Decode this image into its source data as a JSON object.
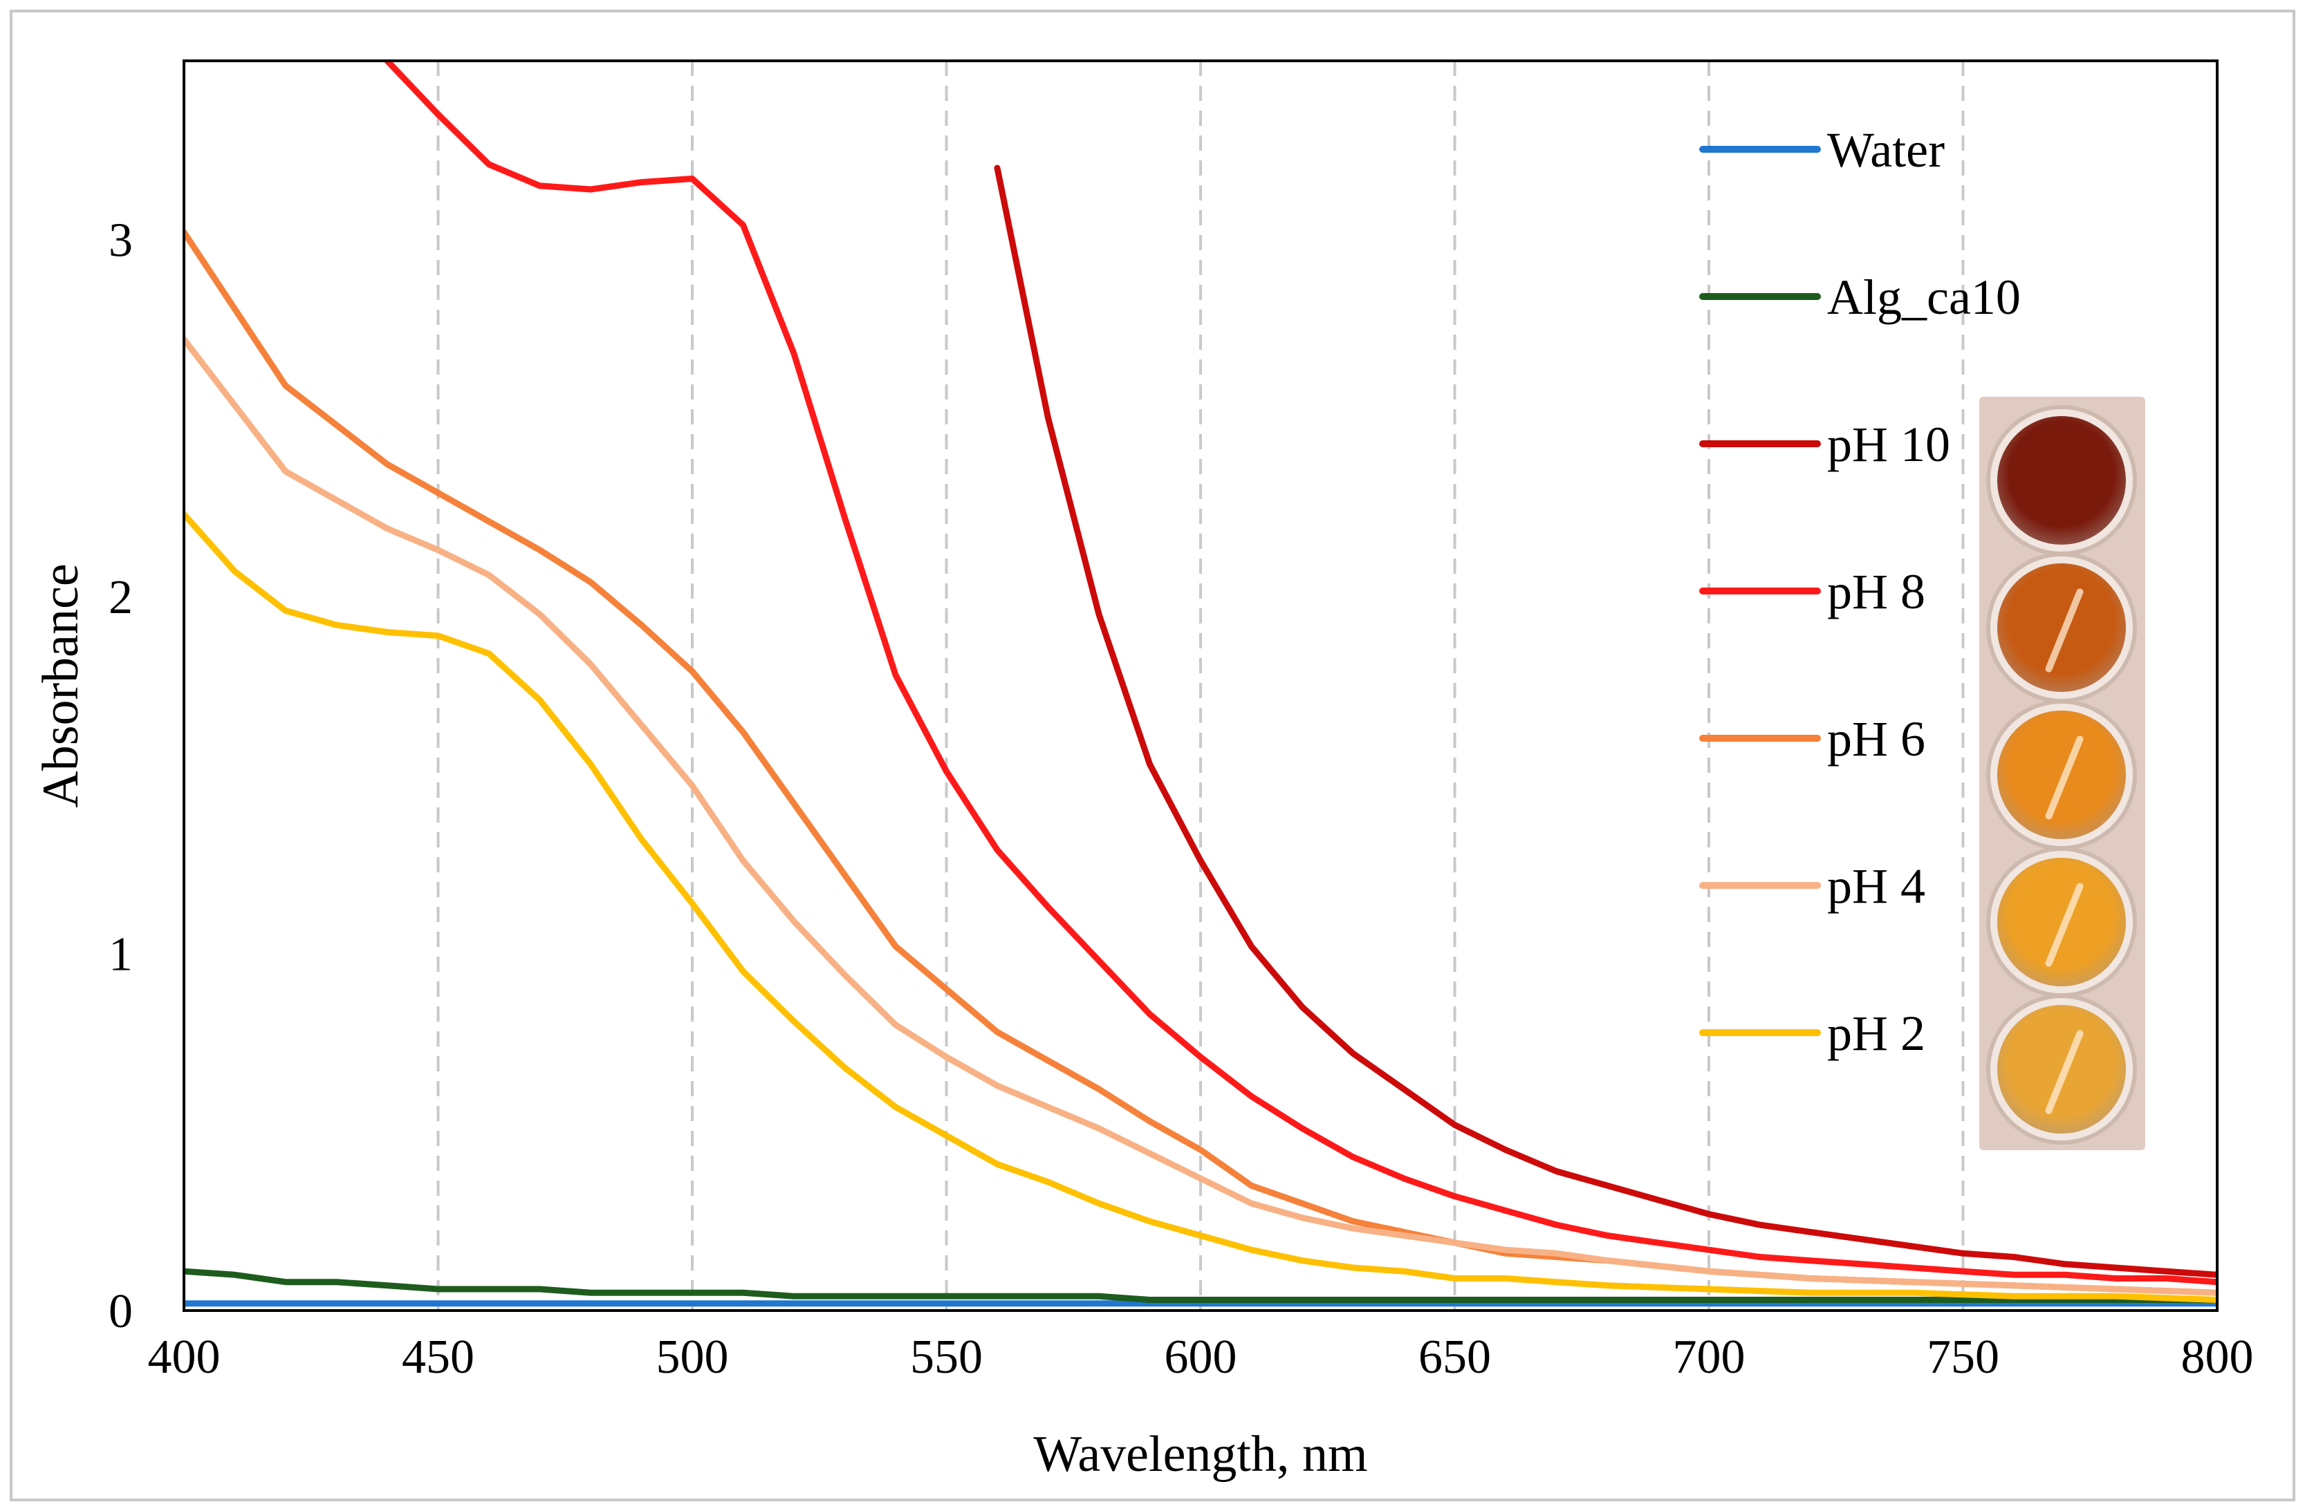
{
  "chart_data": {
    "type": "line",
    "title": "",
    "xlabel": "Wavelength, nm",
    "ylabel": "Absorbance",
    "xlim": [
      400,
      800
    ],
    "ylim": [
      0,
      3.5
    ],
    "xticks": [
      400,
      450,
      500,
      550,
      600,
      650,
      700,
      750,
      800
    ],
    "yticks": [
      0,
      1,
      2,
      3
    ],
    "grid": "vertical dashed",
    "legend_position": "top-right",
    "series": [
      {
        "name": "Water",
        "color": "#1f77d0",
        "x": [
          400,
          800
        ],
        "y": [
          0.02,
          0.02
        ]
      },
      {
        "name": "Alg_ca10",
        "color": "#1e5c1e",
        "x": [
          400,
          410,
          420,
          430,
          440,
          450,
          460,
          470,
          480,
          490,
          500,
          510,
          520,
          530,
          540,
          550,
          560,
          570,
          580,
          590,
          600,
          650,
          700,
          750,
          800
        ],
        "y": [
          0.11,
          0.1,
          0.08,
          0.08,
          0.07,
          0.06,
          0.06,
          0.06,
          0.05,
          0.05,
          0.05,
          0.05,
          0.04,
          0.04,
          0.04,
          0.04,
          0.04,
          0.04,
          0.04,
          0.03,
          0.03,
          0.03,
          0.03,
          0.03,
          0.03
        ]
      },
      {
        "name": "pH 10",
        "color": "#cc0a0a",
        "x": [
          560,
          570,
          580,
          590,
          600,
          610,
          620,
          630,
          640,
          650,
          660,
          670,
          680,
          690,
          700,
          710,
          720,
          730,
          740,
          750,
          760,
          770,
          780,
          790,
          800
        ],
        "y": [
          3.2,
          2.5,
          1.95,
          1.53,
          1.26,
          1.02,
          0.85,
          0.72,
          0.62,
          0.52,
          0.45,
          0.39,
          0.35,
          0.31,
          0.27,
          0.24,
          0.22,
          0.2,
          0.18,
          0.16,
          0.15,
          0.13,
          0.12,
          0.11,
          0.1
        ]
      },
      {
        "name": "pH 8",
        "color": "#ff1a1a",
        "x": [
          440,
          450,
          460,
          470,
          480,
          490,
          500,
          510,
          520,
          530,
          540,
          550,
          560,
          570,
          580,
          590,
          600,
          610,
          620,
          630,
          640,
          650,
          660,
          670,
          680,
          690,
          700,
          710,
          720,
          730,
          740,
          750,
          760,
          770,
          780,
          790,
          800
        ],
        "y": [
          3.5,
          3.35,
          3.21,
          3.15,
          3.14,
          3.16,
          3.17,
          3.04,
          2.68,
          2.22,
          1.78,
          1.51,
          1.29,
          1.13,
          0.98,
          0.83,
          0.71,
          0.6,
          0.51,
          0.43,
          0.37,
          0.32,
          0.28,
          0.24,
          0.21,
          0.19,
          0.17,
          0.15,
          0.14,
          0.13,
          0.12,
          0.11,
          0.1,
          0.1,
          0.09,
          0.09,
          0.08
        ]
      },
      {
        "name": "pH 6",
        "color": "#f5813a",
        "x": [
          400,
          420,
          440,
          460,
          470,
          480,
          490,
          500,
          510,
          520,
          530,
          540,
          550,
          560,
          570,
          580,
          590,
          600,
          610,
          620,
          630,
          640,
          650,
          660,
          670,
          680,
          700,
          720,
          740,
          760,
          780,
          800
        ],
        "y": [
          3.02,
          2.59,
          2.37,
          2.21,
          2.13,
          2.04,
          1.92,
          1.79,
          1.62,
          1.42,
          1.22,
          1.02,
          0.9,
          0.78,
          0.7,
          0.62,
          0.53,
          0.45,
          0.35,
          0.3,
          0.25,
          0.22,
          0.19,
          0.16,
          0.15,
          0.14,
          0.11,
          0.09,
          0.08,
          0.07,
          0.06,
          0.05
        ]
      },
      {
        "name": "pH 4",
        "color": "#f8b185",
        "x": [
          400,
          420,
          440,
          450,
          460,
          470,
          480,
          490,
          500,
          510,
          520,
          530,
          540,
          550,
          560,
          570,
          580,
          590,
          600,
          610,
          620,
          630,
          640,
          650,
          660,
          670,
          680,
          700,
          720,
          740,
          760,
          780,
          800
        ],
        "y": [
          2.72,
          2.35,
          2.19,
          2.13,
          2.06,
          1.95,
          1.81,
          1.64,
          1.47,
          1.26,
          1.09,
          0.94,
          0.8,
          0.71,
          0.63,
          0.57,
          0.51,
          0.44,
          0.37,
          0.3,
          0.26,
          0.23,
          0.21,
          0.19,
          0.17,
          0.16,
          0.14,
          0.11,
          0.09,
          0.08,
          0.07,
          0.06,
          0.05
        ]
      },
      {
        "name": "pH 2",
        "color": "#ffc000",
        "x": [
          400,
          410,
          420,
          430,
          440,
          450,
          460,
          470,
          480,
          490,
          500,
          510,
          520,
          530,
          540,
          550,
          560,
          570,
          580,
          590,
          600,
          610,
          620,
          630,
          640,
          650,
          660,
          670,
          680,
          700,
          720,
          740,
          760,
          780,
          800
        ],
        "y": [
          2.23,
          2.07,
          1.96,
          1.92,
          1.9,
          1.89,
          1.84,
          1.71,
          1.53,
          1.32,
          1.14,
          0.95,
          0.81,
          0.68,
          0.57,
          0.49,
          0.41,
          0.36,
          0.3,
          0.25,
          0.21,
          0.17,
          0.14,
          0.12,
          0.11,
          0.09,
          0.09,
          0.08,
          0.07,
          0.06,
          0.05,
          0.05,
          0.04,
          0.04,
          0.03
        ]
      }
    ]
  },
  "inset_photo": {
    "caption": "",
    "wells": [
      {
        "label": "pH 10",
        "color": "#7a1a0c"
      },
      {
        "label": "pH 8",
        "color": "#c65a12"
      },
      {
        "label": "pH 6",
        "color": "#e88a1c"
      },
      {
        "label": "pH 4",
        "color": "#eda024"
      },
      {
        "label": "pH 2",
        "color": "#e9a534"
      }
    ]
  }
}
